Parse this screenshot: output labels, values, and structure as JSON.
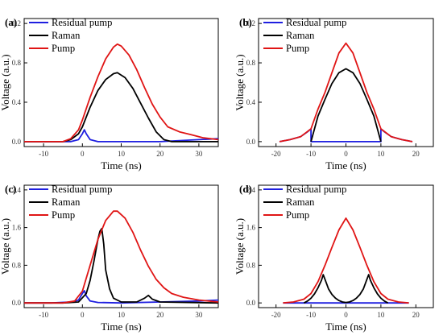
{
  "chart_data": [
    {
      "panel": "(a)",
      "type": "line",
      "xlabel": "Time (ns)",
      "ylabel": "Voltage (a.u.)",
      "xlim": [
        -15,
        35
      ],
      "ylim": [
        -0.05,
        1.25
      ],
      "xticks": [
        -10,
        0,
        10,
        20,
        30
      ],
      "yticks": [
        0.0,
        0.4,
        0.8,
        1.2
      ],
      "ytick_labels": [
        "0.0",
        "0.4",
        "0.8",
        "1.2"
      ],
      "legend": "top-left",
      "series": [
        {
          "name": "Residual  pump",
          "color": "#1f1fe0",
          "x": [
            -15,
            -8,
            -3,
            -1,
            0,
            0.5,
            1,
            2,
            4,
            10,
            20,
            30,
            35
          ],
          "y": [
            0.0,
            0.0,
            0.0,
            0.02,
            0.08,
            0.12,
            0.08,
            0.02,
            0.0,
            0.0,
            0.0,
            0.02,
            0.03
          ]
        },
        {
          "name": "Raman",
          "color": "#000000",
          "x": [
            -15,
            -5,
            -3,
            -1,
            0,
            2,
            4,
            6,
            8,
            9,
            11,
            13,
            15,
            17,
            19,
            21,
            23,
            35
          ],
          "y": [
            0.0,
            0.0,
            0.02,
            0.08,
            0.15,
            0.35,
            0.52,
            0.63,
            0.69,
            0.7,
            0.65,
            0.54,
            0.39,
            0.24,
            0.1,
            0.02,
            0.0,
            0.0
          ]
        },
        {
          "name": "Pump",
          "color": "#e01515",
          "x": [
            -15,
            -5,
            -3,
            -1,
            0,
            2,
            4,
            6,
            8,
            9,
            10,
            12,
            14,
            16,
            18,
            20,
            22,
            25,
            28,
            31,
            35
          ],
          "y": [
            0.0,
            0.0,
            0.03,
            0.12,
            0.22,
            0.45,
            0.66,
            0.84,
            0.96,
            0.99,
            0.97,
            0.88,
            0.73,
            0.55,
            0.38,
            0.25,
            0.15,
            0.1,
            0.07,
            0.04,
            0.02
          ]
        }
      ]
    },
    {
      "panel": "(b)",
      "type": "line",
      "xlabel": "Time (ns)",
      "ylabel": "Voltage (a.u.)",
      "xlim": [
        -25,
        25
      ],
      "ylim": [
        -0.05,
        1.25
      ],
      "xticks": [
        -20,
        -10,
        0,
        10,
        20
      ],
      "yticks": [
        0.0,
        0.4,
        0.8,
        1.2
      ],
      "ytick_labels": [
        "0.0",
        "0.4",
        "0.8",
        "1.2"
      ],
      "legend": "top-left",
      "series": [
        {
          "name": "Residual pump",
          "color": "#1f1fe0",
          "x": [
            -19,
            -16,
            -13,
            -11,
            -10,
            -10,
            -5,
            0,
            5,
            10,
            10,
            11,
            13,
            16,
            19
          ],
          "y": [
            0.0,
            0.02,
            0.05,
            0.1,
            0.13,
            0.0,
            0.0,
            0.0,
            0.0,
            0.0,
            0.13,
            0.1,
            0.05,
            0.02,
            0.0
          ]
        },
        {
          "name": "Raman",
          "color": "#000000",
          "x": [
            -10,
            -8,
            -6,
            -4,
            -2,
            0,
            2,
            4,
            6,
            8,
            10
          ],
          "y": [
            0.0,
            0.26,
            0.43,
            0.59,
            0.7,
            0.74,
            0.7,
            0.59,
            0.43,
            0.26,
            0.0
          ]
        },
        {
          "name": "Pump",
          "color": "#e01515",
          "x": [
            -19,
            -16,
            -13,
            -10,
            -8,
            -6,
            -4,
            -2,
            0,
            2,
            4,
            6,
            8,
            10,
            13,
            16,
            19
          ],
          "y": [
            0.0,
            0.02,
            0.05,
            0.13,
            0.33,
            0.5,
            0.7,
            0.9,
            1.0,
            0.9,
            0.7,
            0.5,
            0.33,
            0.13,
            0.05,
            0.02,
            0.0
          ]
        }
      ]
    },
    {
      "panel": "(c)",
      "type": "line",
      "xlabel": "Time (ns)",
      "ylabel": "Voltage (a.u.)",
      "xlim": [
        -15,
        35
      ],
      "ylim": [
        -0.1,
        2.5
      ],
      "xticks": [
        -10,
        0,
        10,
        20,
        30
      ],
      "yticks": [
        0.0,
        0.8,
        1.6,
        2.4
      ],
      "ytick_labels": [
        "0.0",
        "0.8",
        "1.6",
        "2.4"
      ],
      "legend": "top-left",
      "series": [
        {
          "name": "Residual  pump",
          "color": "#1f1fe0",
          "x": [
            -15,
            -8,
            -3,
            -1,
            0,
            0.5,
            1,
            2,
            4,
            10,
            20,
            30,
            35
          ],
          "y": [
            0.0,
            0.0,
            0.02,
            0.06,
            0.2,
            0.26,
            0.15,
            0.04,
            0.01,
            0.0,
            0.02,
            0.04,
            0.06
          ]
        },
        {
          "name": "Raman",
          "color": "#000000",
          "x": [
            -15,
            -5,
            -1,
            1,
            2,
            3,
            4,
            4.5,
            5,
            5.5,
            6,
            7,
            8,
            10,
            14,
            16,
            17,
            18,
            20,
            35
          ],
          "y": [
            0.0,
            0.0,
            0.02,
            0.2,
            0.48,
            0.9,
            1.35,
            1.52,
            1.58,
            1.25,
            0.7,
            0.3,
            0.1,
            0.02,
            0.02,
            0.1,
            0.16,
            0.08,
            0.02,
            0.0
          ]
        },
        {
          "name": "Pump",
          "color": "#e01515",
          "x": [
            -15,
            -5,
            -2,
            0,
            2,
            4,
            6,
            8,
            9,
            11,
            13,
            15,
            17,
            19,
            21,
            23,
            26,
            30,
            35
          ],
          "y": [
            0.0,
            0.0,
            0.04,
            0.25,
            0.8,
            1.35,
            1.75,
            1.95,
            1.95,
            1.8,
            1.5,
            1.12,
            0.78,
            0.5,
            0.32,
            0.2,
            0.12,
            0.06,
            0.02
          ]
        }
      ]
    },
    {
      "panel": "(d)",
      "type": "line",
      "xlabel": "Time (ns)",
      "ylabel": "Voltage (a.u.)",
      "xlim": [
        -25,
        25
      ],
      "ylim": [
        -0.1,
        2.5
      ],
      "xticks": [
        -20,
        -10,
        0,
        10,
        20
      ],
      "yticks": [
        0.0,
        0.8,
        1.6,
        2.4
      ],
      "ytick_labels": [
        "0.0",
        "0.8",
        "1.6",
        "2.4"
      ],
      "legend": "top-left",
      "series": [
        {
          "name": "Residual pump",
          "color": "#1f1fe0",
          "x": [
            -18,
            -10,
            0,
            10,
            18
          ],
          "y": [
            0.0,
            0.0,
            0.0,
            0.0,
            0.0
          ]
        },
        {
          "name": "Raman",
          "color": "#000000",
          "x": [
            -12,
            -11,
            -10,
            -9,
            -8,
            -7,
            -6.5,
            -6,
            -5,
            -4,
            -3,
            -2,
            -1,
            0,
            1,
            2,
            3,
            4,
            5,
            6,
            6.5,
            7,
            8,
            9,
            10,
            11,
            12
          ],
          "y": [
            0.0,
            0.04,
            0.1,
            0.19,
            0.32,
            0.48,
            0.6,
            0.5,
            0.3,
            0.18,
            0.1,
            0.05,
            0.02,
            0.01,
            0.02,
            0.05,
            0.1,
            0.18,
            0.3,
            0.5,
            0.6,
            0.48,
            0.32,
            0.19,
            0.1,
            0.04,
            0.0
          ]
        },
        {
          "name": "Pump",
          "color": "#e01515",
          "x": [
            -18,
            -15,
            -12,
            -10,
            -8,
            -6,
            -4,
            -2,
            0,
            2,
            4,
            6,
            8,
            10,
            12,
            15,
            18
          ],
          "y": [
            0.0,
            0.02,
            0.08,
            0.2,
            0.45,
            0.8,
            1.18,
            1.55,
            1.8,
            1.55,
            1.18,
            0.8,
            0.45,
            0.2,
            0.08,
            0.02,
            0.0
          ]
        }
      ]
    }
  ]
}
